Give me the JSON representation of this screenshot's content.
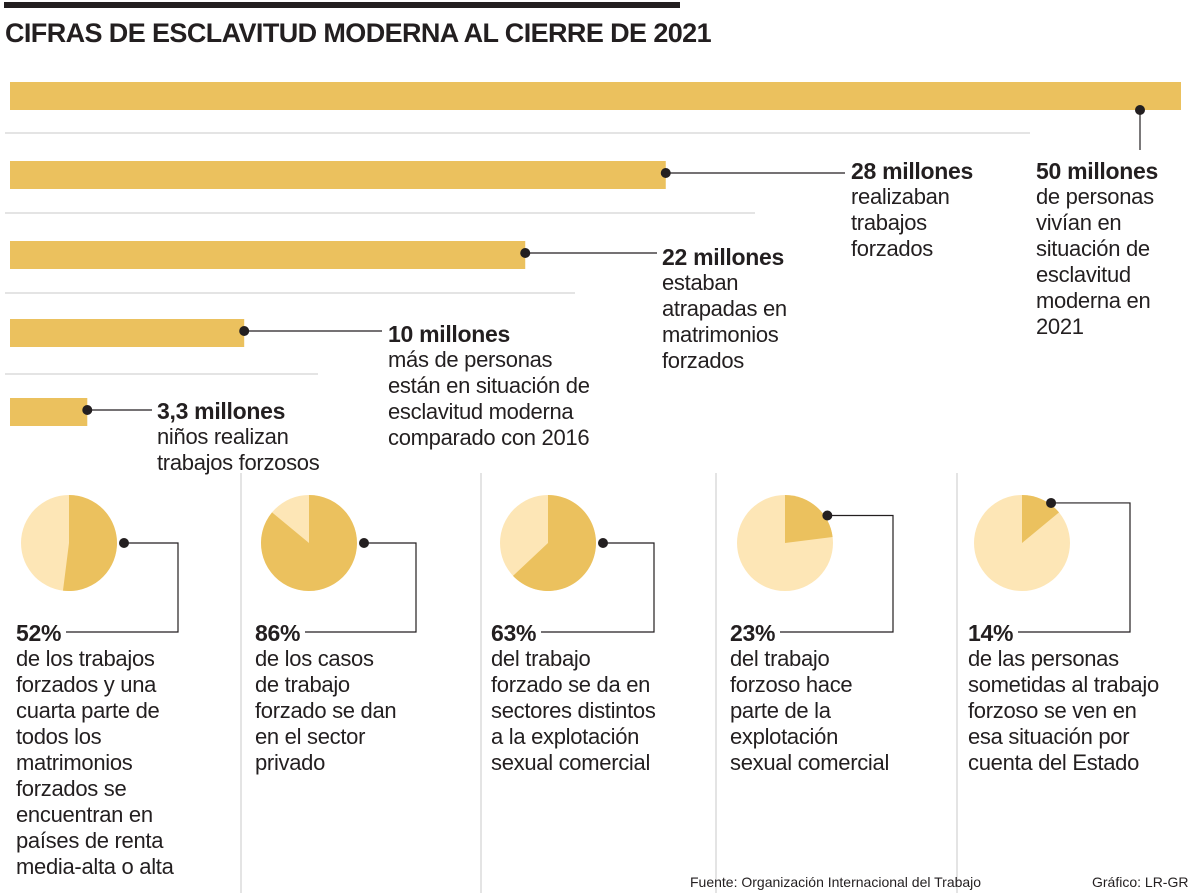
{
  "title": "CIFRAS DE ESCLAVITUD MODERNA AL CIERRE DE 2021",
  "colors": {
    "bar": "#EBC15E",
    "pie_main": "#EBC15E",
    "pie_rest": "#FDE6B6",
    "text": "#231F20",
    "rule": "#C8C8C8"
  },
  "chart_data": [
    {
      "type": "bar",
      "orientation": "horizontal",
      "unit": "millones",
      "categories": [
        "de personas vivían en situación de esclavitud moderna en 2021",
        "realizaban trabajos forzados",
        "estaban atrapadas en matrimonios forzados",
        "más de personas están en situación de esclavitud moderna comparado con 2016",
        "niños realizan trabajos forzosos"
      ],
      "values": [
        50,
        28,
        22,
        10,
        3.3
      ],
      "xlim": [
        0,
        50
      ],
      "bars": [
        {
          "value": 50,
          "label": "50 millones",
          "desc": "de personas\nvivían en\nsituación de\nesclavitud\nmoderna en\n2021"
        },
        {
          "value": 28,
          "label": "28 millones",
          "desc": "realizaban\ntrabajos\nforzados"
        },
        {
          "value": 22,
          "label": "22 millones",
          "desc": "estaban\natrapadas en\nmatrimonios\nforzados"
        },
        {
          "value": 10,
          "label": "10 millones",
          "desc": "más de personas\nestán en situación de\nesclavitud moderna\ncomparado con 2016"
        },
        {
          "value": 3.3,
          "label": "3,3 millones",
          "desc": "niños realizan\ntrabajos forzosos"
        }
      ]
    },
    {
      "type": "pie",
      "unit": "%",
      "pies": [
        {
          "value": 52,
          "label": "52%",
          "desc": "de los trabajos\nforzados y una\ncuarta parte de\ntodos los\nmatrimonios\nforzados se\nencuentran en\npaíses de renta\nmedia-alta o alta"
        },
        {
          "value": 86,
          "label": "86%",
          "desc": "de los casos\nde trabajo\nforzado se dan\nen el sector\nprivado"
        },
        {
          "value": 63,
          "label": "63%",
          "desc": "del trabajo\nforzado se da en\nsectores distintos\na la explotación\nsexual comercial"
        },
        {
          "value": 23,
          "label": "23%",
          "desc": "del trabajo\nforzoso hace\nparte de la\nexplotación\nsexual comercial"
        },
        {
          "value": 14,
          "label": "14%",
          "desc": "de las personas\nsometidas al trabajo\nforzoso se ven en\nesa situación por\ncuenta del Estado"
        }
      ]
    }
  ],
  "source": "Fuente: Organización Internacional del Trabajo",
  "credit": "Gráfico: LR-GR"
}
